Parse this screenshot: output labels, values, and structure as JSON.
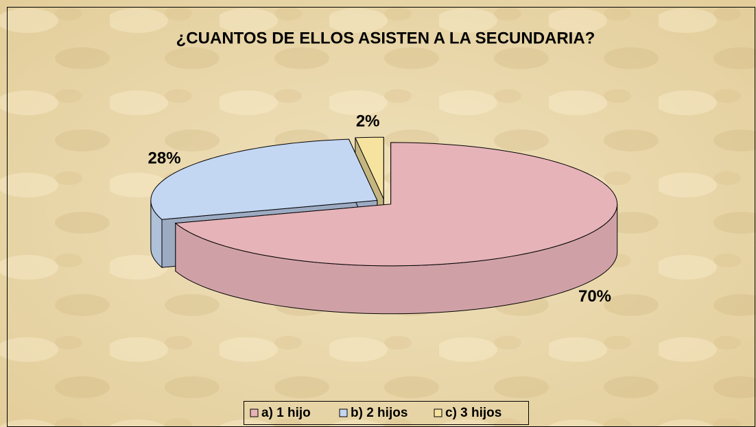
{
  "chart_data": {
    "type": "pie",
    "title": "¿CUANTOS DE ELLOS ASISTEN A LA SECUNDARIA?",
    "categories": [
      "a) 1 hijo",
      "b) 2 hijos",
      "c) 3 hijos"
    ],
    "values": [
      70,
      28,
      2
    ],
    "value_labels": [
      "70%",
      "28%",
      "2%"
    ],
    "colors": [
      "#e6b3b8",
      "#c3d6f2",
      "#f6e3a0"
    ],
    "legend": "bottom"
  }
}
